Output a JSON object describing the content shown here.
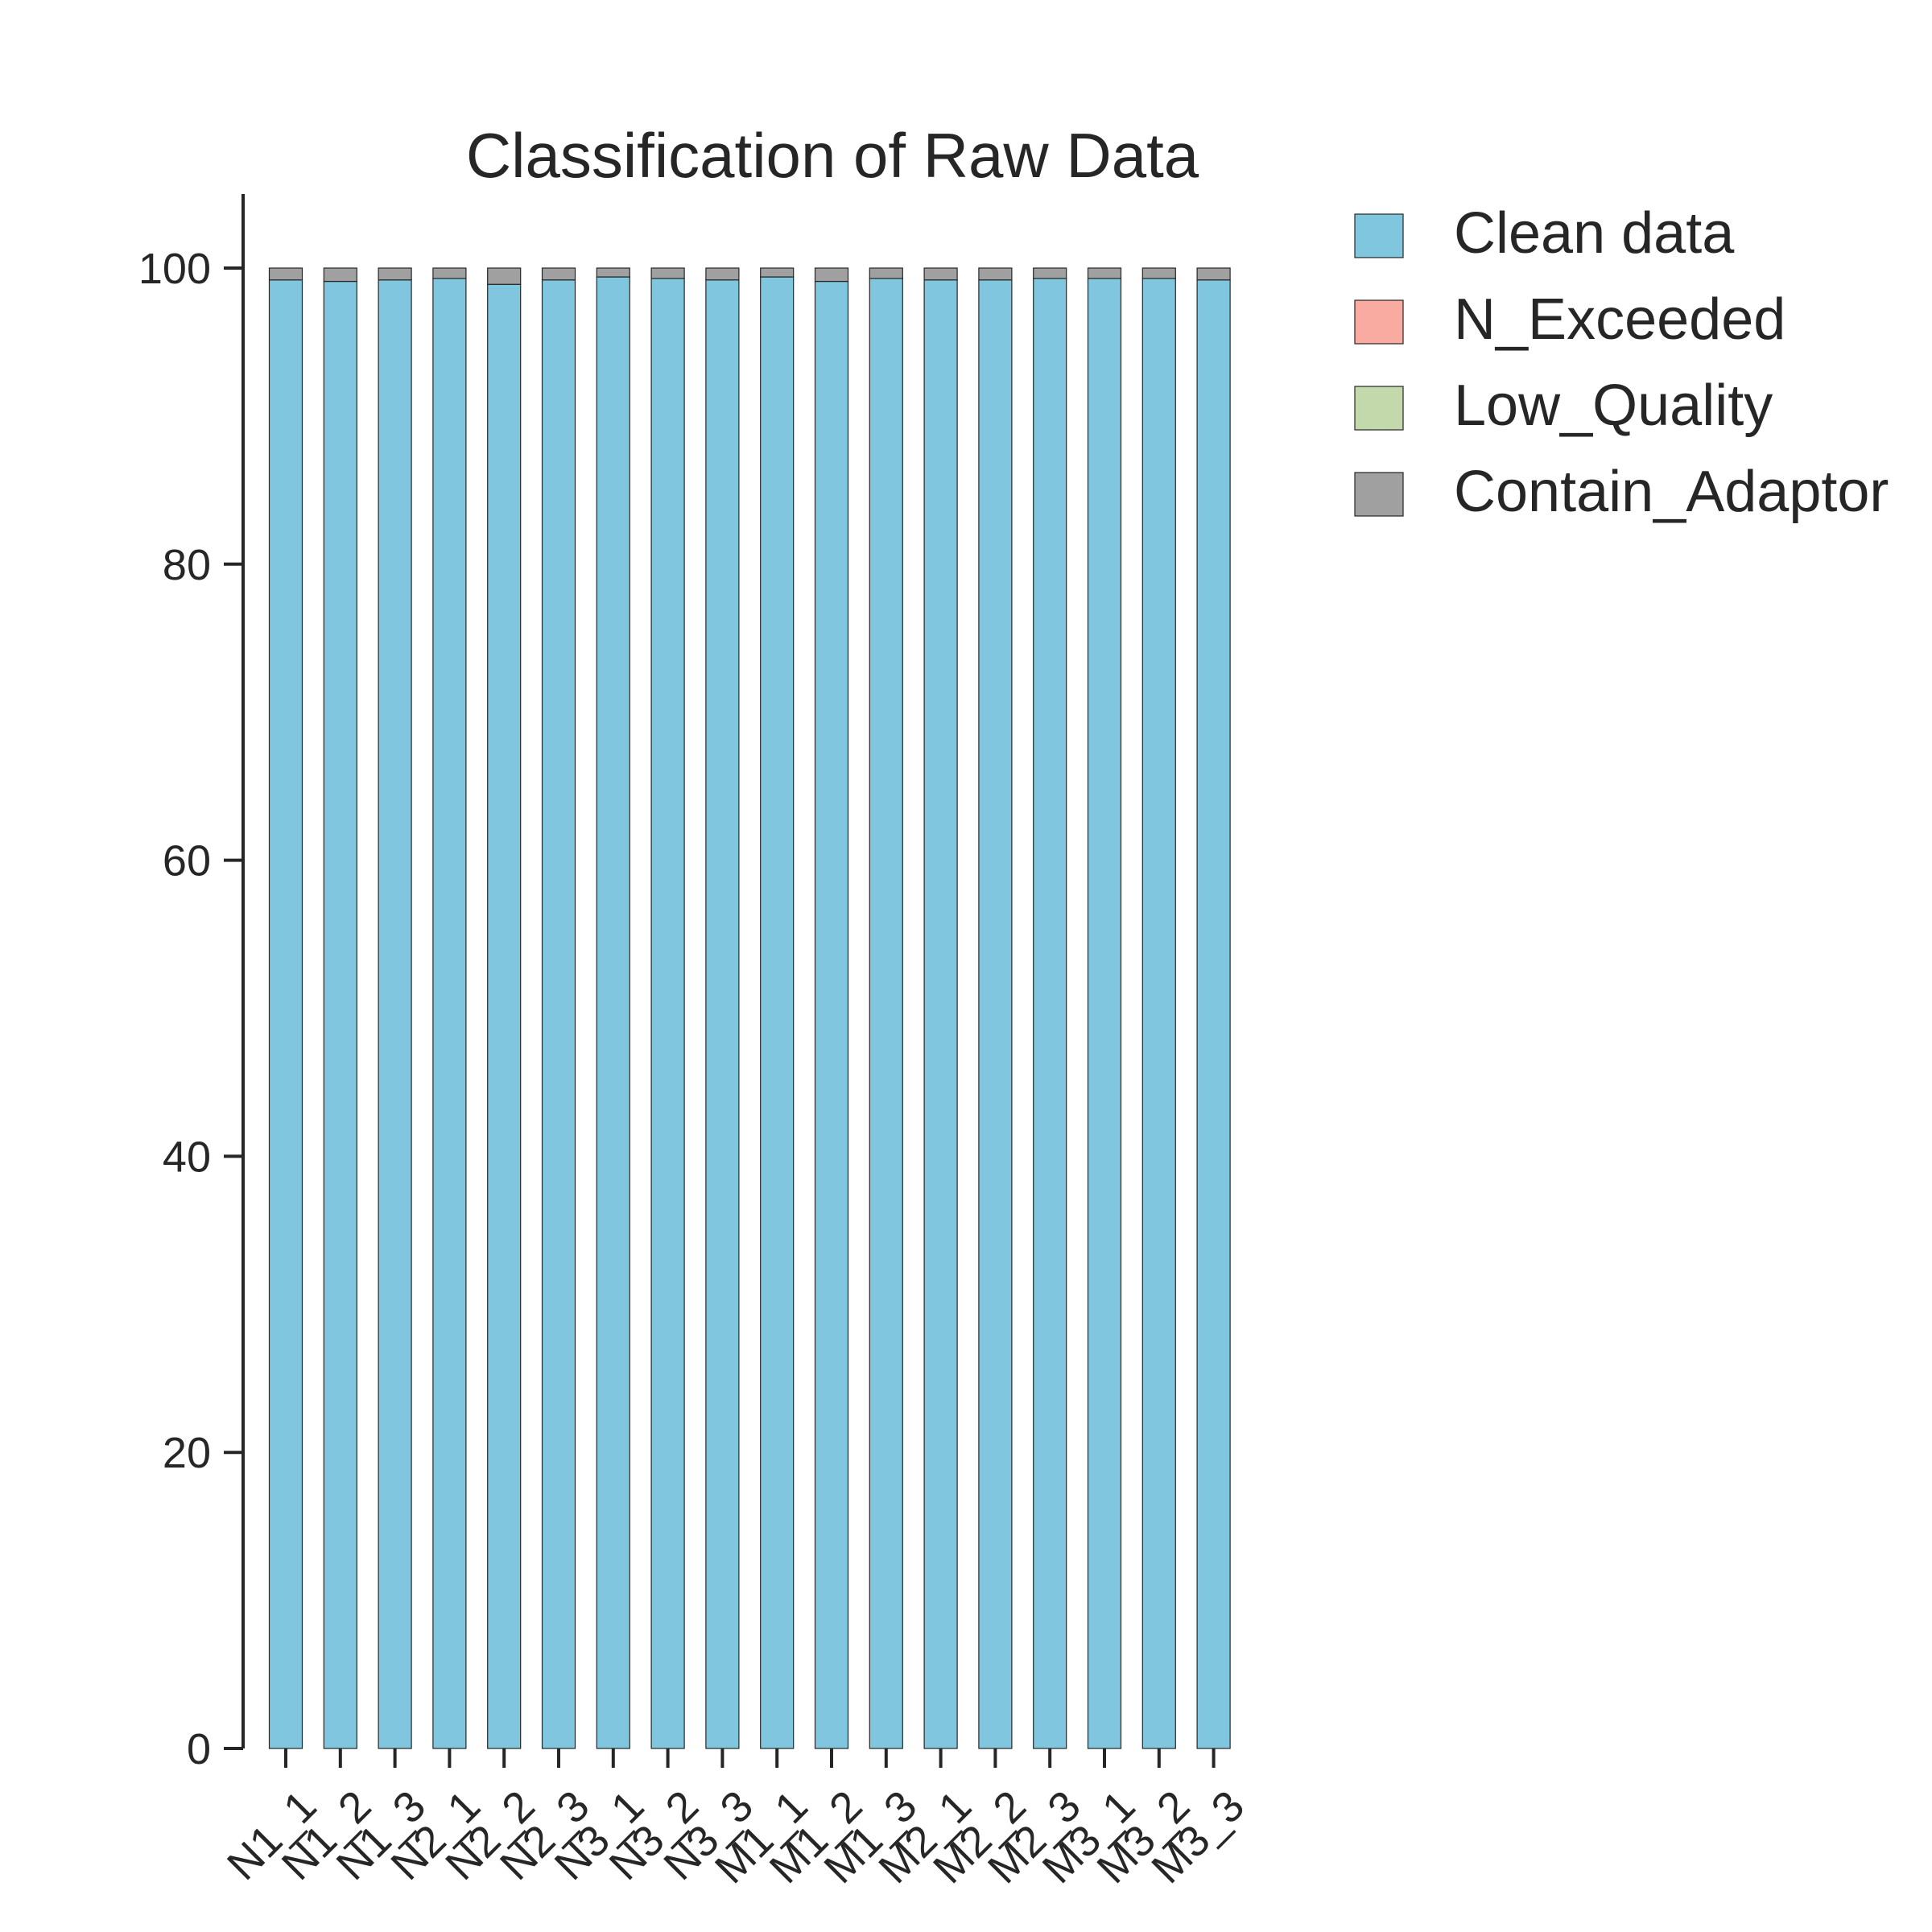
{
  "chart_data": {
    "type": "bar",
    "stacked": true,
    "title": "Classification of Raw Data",
    "xlabel": "",
    "ylabel": "",
    "ylim": [
      0,
      105
    ],
    "yticks": [
      0,
      20,
      40,
      60,
      80,
      100
    ],
    "grid": false,
    "legend_position": "outside top-right",
    "categories": [
      "N1_1",
      "N1_2",
      "N1_3",
      "N2_1",
      "N2_2",
      "N2_3",
      "N3_1",
      "N3_2",
      "N3_3",
      "M1_1",
      "M1_2",
      "M1_3",
      "M2_1",
      "M2_2",
      "M2_3",
      "M3_1",
      "M3_2",
      "M3_3"
    ],
    "series": [
      {
        "name": "Clean data",
        "color": "#7fc6de",
        "values": [
          99.2,
          99.1,
          99.2,
          99.3,
          98.9,
          99.2,
          99.4,
          99.3,
          99.2,
          99.4,
          99.1,
          99.3,
          99.2,
          99.2,
          99.3,
          99.3,
          99.3,
          99.2
        ]
      },
      {
        "name": "N_Exceeded",
        "color": "#f9aaa1",
        "values": [
          0,
          0,
          0,
          0,
          0,
          0,
          0,
          0,
          0,
          0,
          0,
          0,
          0,
          0,
          0,
          0,
          0,
          0
        ]
      },
      {
        "name": "Low_Quality",
        "color": "#c3d9ac",
        "values": [
          0,
          0,
          0,
          0,
          0,
          0,
          0,
          0,
          0,
          0,
          0,
          0,
          0,
          0,
          0,
          0,
          0,
          0
        ]
      },
      {
        "name": "Contain_Adaptor",
        "color": "#a0a0a0",
        "values": [
          0.8,
          0.9,
          0.8,
          0.7,
          1.1,
          0.8,
          0.6,
          0.7,
          0.8,
          0.6,
          0.9,
          0.7,
          0.8,
          0.8,
          0.7,
          0.7,
          0.7,
          0.8
        ]
      }
    ]
  }
}
